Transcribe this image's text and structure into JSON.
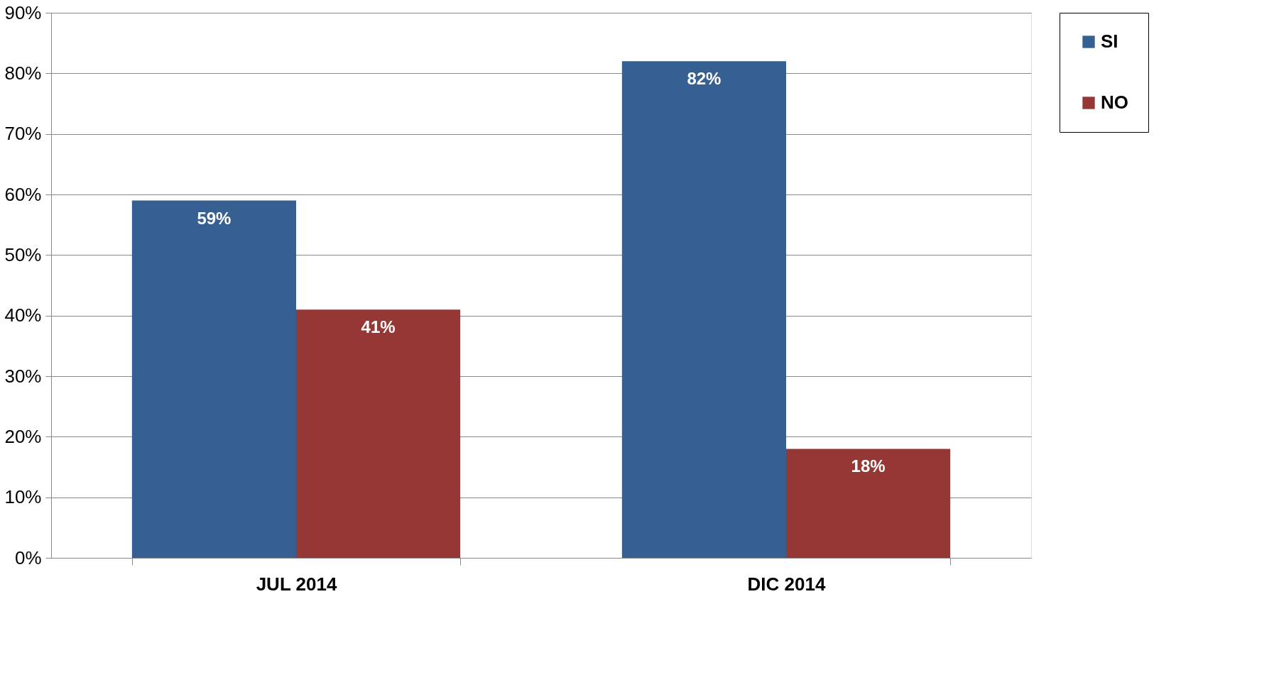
{
  "chart_data": {
    "type": "bar",
    "categories": [
      "JUL 2014",
      "DIC 2014"
    ],
    "series": [
      {
        "name": "SI",
        "color": "#376092",
        "values": [
          59,
          82
        ],
        "value_labels": [
          "59%",
          "82%"
        ]
      },
      {
        "name": "NO",
        "color": "#953735",
        "values": [
          41,
          18
        ],
        "value_labels": [
          "41%",
          "18%"
        ]
      }
    ],
    "ylim": [
      0,
      90
    ],
    "yticks": [
      {
        "value": 0,
        "label": "0%"
      },
      {
        "value": 10,
        "label": "10%"
      },
      {
        "value": 20,
        "label": "20%"
      },
      {
        "value": 30,
        "label": "30%"
      },
      {
        "value": 40,
        "label": "40%"
      },
      {
        "value": 50,
        "label": "50%"
      },
      {
        "value": 60,
        "label": "60%"
      },
      {
        "value": 70,
        "label": "70%"
      },
      {
        "value": 80,
        "label": "80%"
      },
      {
        "value": 90,
        "label": "90%"
      }
    ],
    "grid": "y",
    "legend": "right"
  }
}
